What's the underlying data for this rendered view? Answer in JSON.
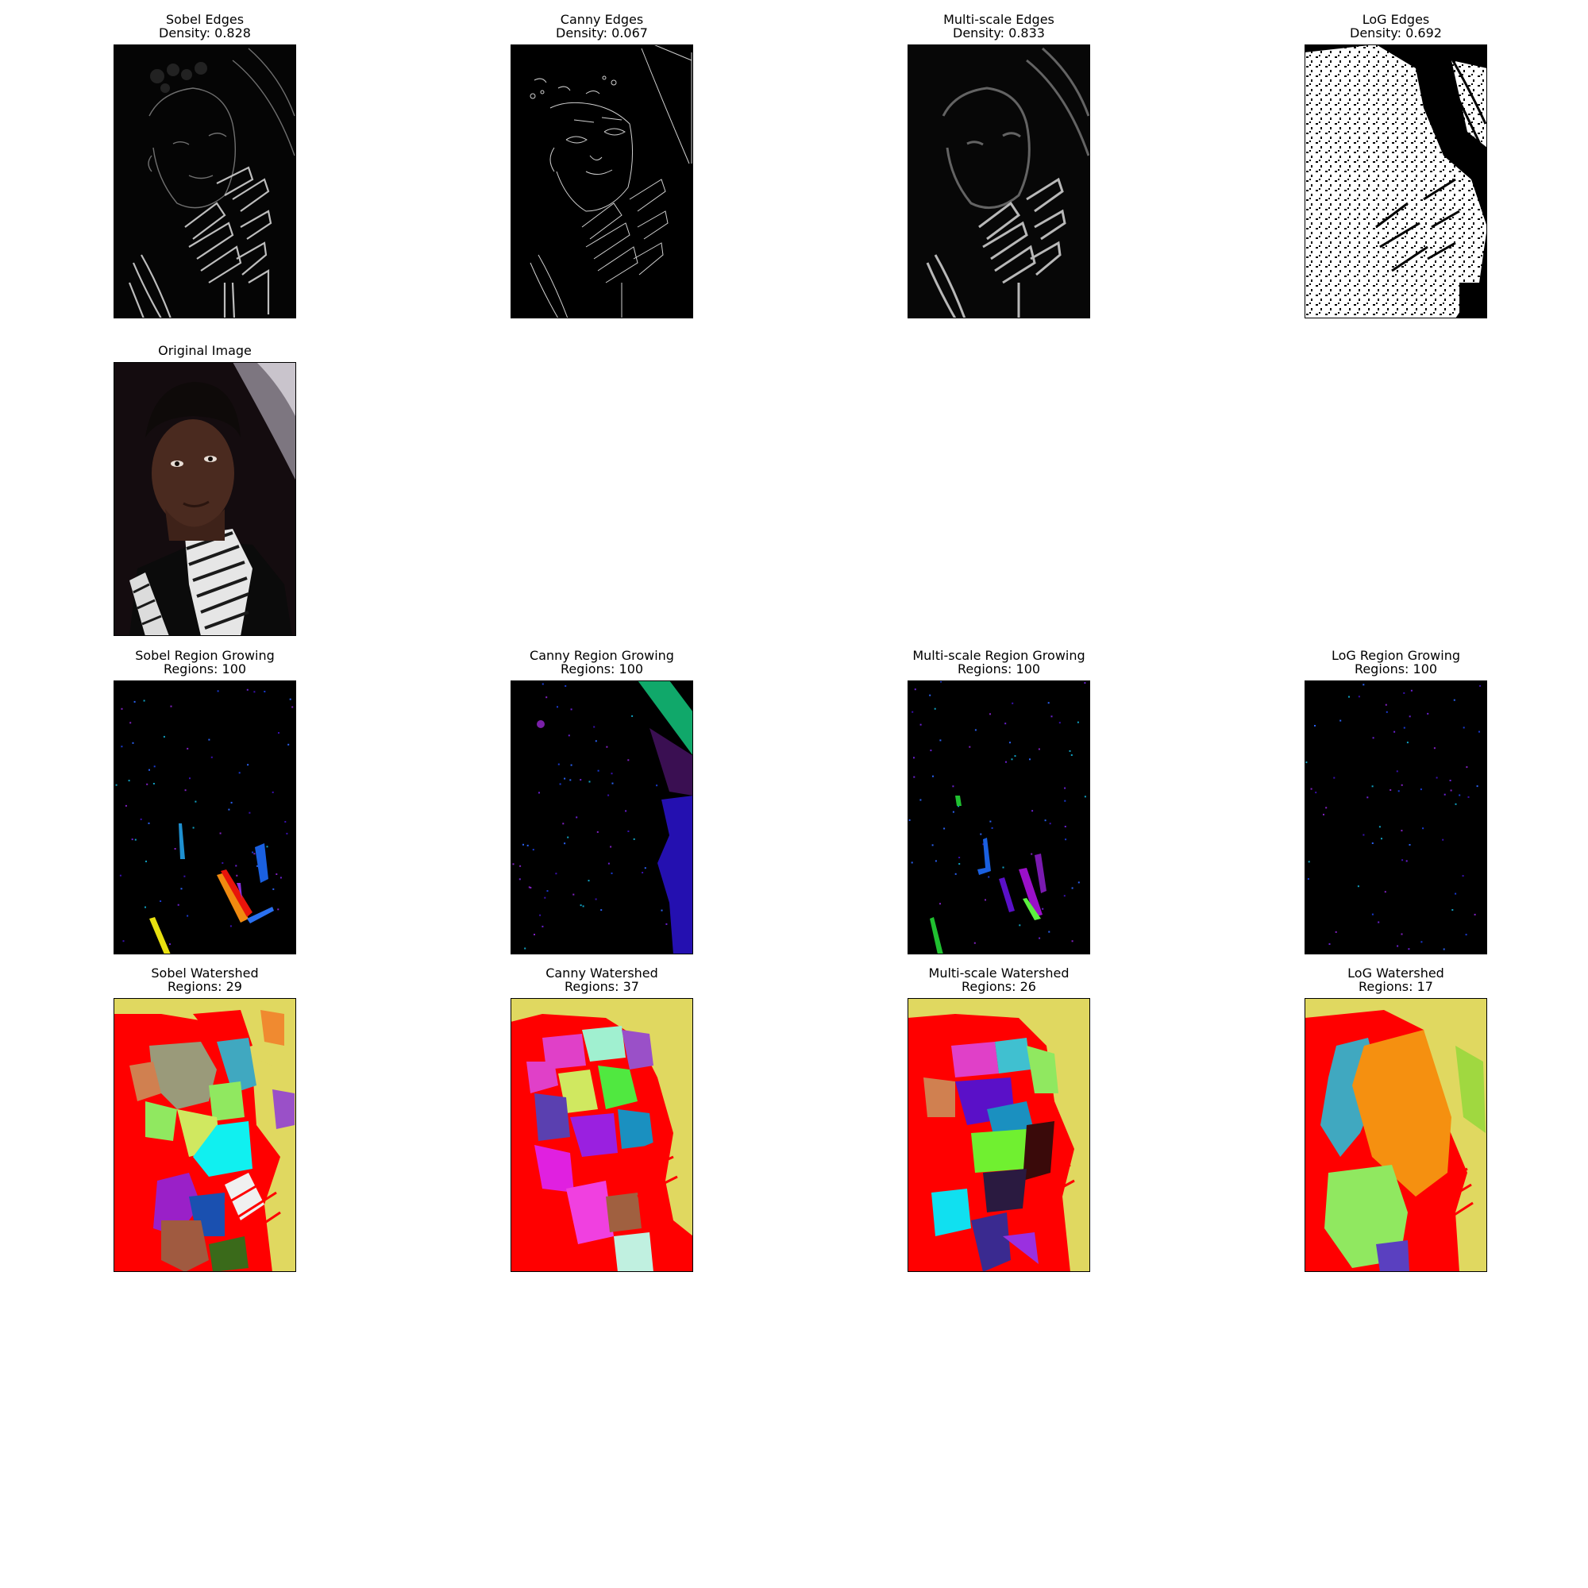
{
  "figure": {
    "rows": [
      {
        "id": "edges",
        "panels": [
          {
            "title": "Sobel Edges",
            "subtitle": "Density: 0.828",
            "kind": "sobel",
            "density": 0.828
          },
          {
            "title": "Canny Edges",
            "subtitle": "Density: 0.067",
            "kind": "canny",
            "density": 0.067
          },
          {
            "title": "Multi-scale Edges",
            "subtitle": "Density: 0.833",
            "kind": "multiscale",
            "density": 0.833
          },
          {
            "title": "LoG Edges",
            "subtitle": "Density: 0.692",
            "kind": "log",
            "density": 0.692
          }
        ]
      },
      {
        "id": "original",
        "panels": [
          {
            "title": "Original Image",
            "subtitle": "",
            "kind": "original"
          }
        ]
      },
      {
        "id": "region-growing",
        "panels": [
          {
            "title": "Sobel Region Growing",
            "subtitle": "Regions: 100",
            "kind": "rg-sobel",
            "regions": 100
          },
          {
            "title": "Canny Region Growing",
            "subtitle": "Regions: 100",
            "kind": "rg-canny",
            "regions": 100
          },
          {
            "title": "Multi-scale Region Growing",
            "subtitle": "Regions: 100",
            "kind": "rg-multiscale",
            "regions": 100
          },
          {
            "title": "LoG Region Growing",
            "subtitle": "Regions: 100",
            "kind": "rg-log",
            "regions": 100
          }
        ]
      },
      {
        "id": "watershed",
        "panels": [
          {
            "title": "Sobel Watershed",
            "subtitle": "Regions: 29",
            "kind": "ws-sobel",
            "regions": 29
          },
          {
            "title": "Canny Watershed",
            "subtitle": "Regions: 37",
            "kind": "ws-canny",
            "regions": 37
          },
          {
            "title": "Multi-scale Watershed",
            "subtitle": "Regions: 26",
            "kind": "ws-multiscale",
            "regions": 26
          },
          {
            "title": "LoG Watershed",
            "subtitle": "Regions: 17",
            "kind": "ws-log",
            "regions": 17
          }
        ]
      }
    ]
  }
}
